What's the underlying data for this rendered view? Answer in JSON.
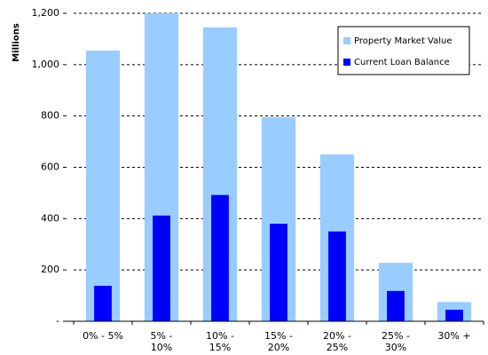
{
  "chart_data": {
    "type": "bar",
    "y_label": "Millions",
    "categories": [
      "0% - 5%",
      "5% - 10%",
      "10% - 15%",
      "15% - 20%",
      "20% - 25%",
      "25% - 30%",
      "30% +"
    ],
    "series": [
      {
        "name": "Property Market Value",
        "color": "#99ccff",
        "values": [
          1055,
          1200,
          1145,
          795,
          650,
          228,
          75
        ]
      },
      {
        "name": "Current Loan Balance",
        "color": "#0000ff",
        "values": [
          138,
          412,
          492,
          380,
          350,
          118,
          45
        ]
      }
    ],
    "ylim": [
      0,
      1200
    ],
    "yticks": [
      {
        "value": 0,
        "label": "-"
      },
      200,
      400,
      600,
      800,
      {
        "value": 1000,
        "label": "1,000"
      },
      {
        "value": 1200,
        "label": "1,200"
      }
    ],
    "grid": true,
    "legend": "upper right"
  }
}
